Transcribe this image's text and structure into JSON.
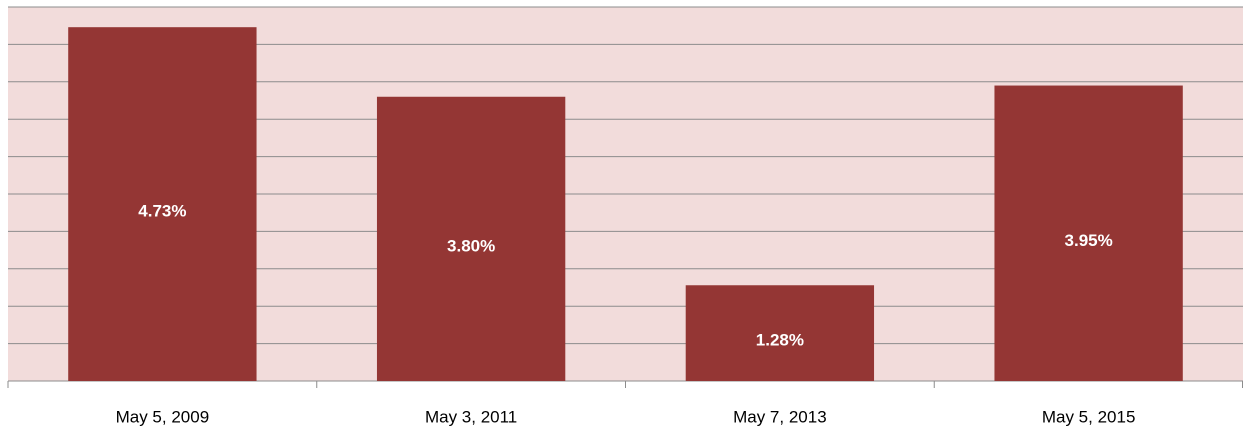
{
  "chart_data": {
    "type": "bar",
    "categories": [
      "May 5, 2009",
      "May 3, 2011",
      "May 7, 2013",
      "May 5, 2015"
    ],
    "values": [
      4.73,
      3.8,
      1.28,
      3.95
    ],
    "value_labels": [
      "4.73%",
      "3.80%",
      "1.28%",
      "3.95%"
    ],
    "color": "#943634",
    "ylim": [
      0,
      5
    ],
    "yticks": [
      0,
      0.5,
      1,
      1.5,
      2,
      2.5,
      3,
      3.5,
      4,
      4.5,
      5
    ],
    "grid": true
  }
}
